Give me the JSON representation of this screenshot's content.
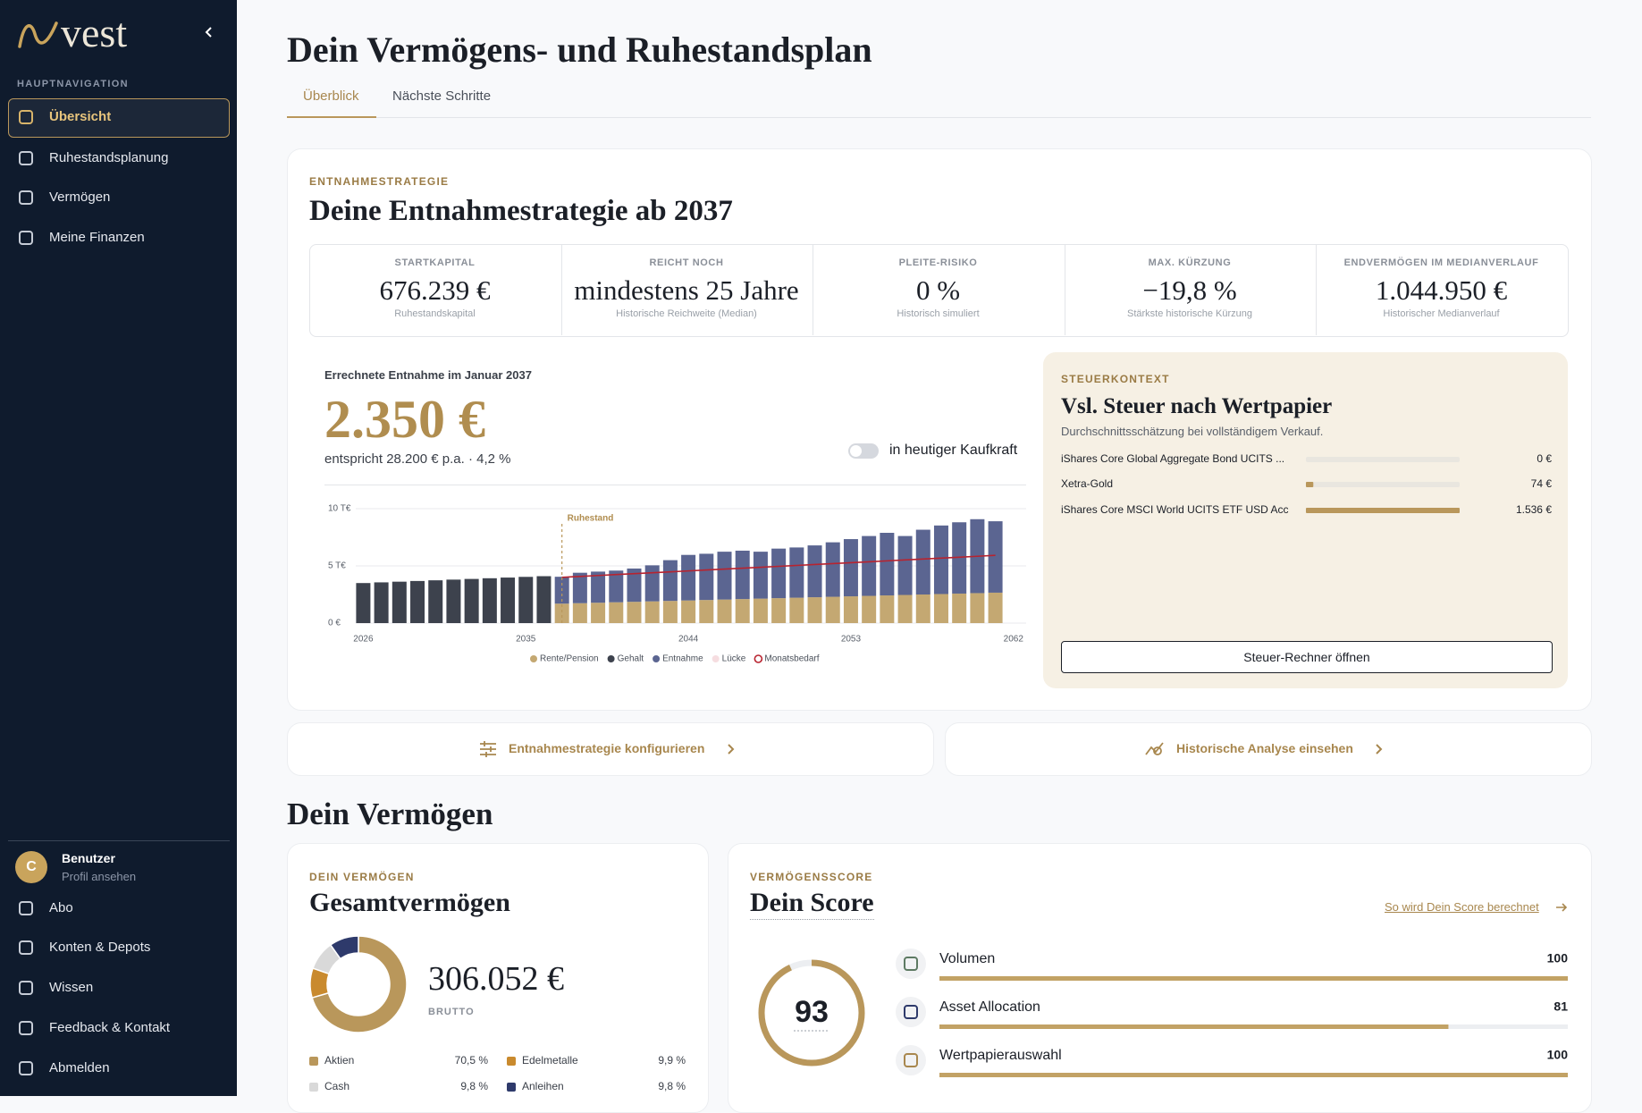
{
  "sidebar": {
    "logo": "vest",
    "section": "HAUPTNAVIGATION",
    "nav": [
      "Übersicht",
      "Ruhestandsplanung",
      "Vermögen",
      "Meine Finanzen"
    ],
    "user": {
      "initial": "C",
      "name": "Benutzer",
      "link": "Profil ansehen"
    },
    "bottom_nav": [
      "Abo",
      "Konten & Depots",
      "Wissen",
      "Feedback & Kontakt",
      "Abmelden"
    ]
  },
  "header": {
    "title": "Dein Vermögens- und Ruhestandsplan",
    "tabs": [
      "Überblick",
      "Nächste Schritte"
    ]
  },
  "strategy": {
    "eyebrow": "ENTNAHMESTRATEGIE",
    "title": "Deine Entnahmestrategie ab 2037",
    "kpis": [
      {
        "label": "STARTKAPITAL",
        "value": "676.239 €",
        "note": "Ruhestandskapital"
      },
      {
        "label": "REICHT NOCH",
        "value": "mindestens 25 Jahre",
        "note": "Historische Reichweite (Median)"
      },
      {
        "label": "PLEITE-RISIKO",
        "value": "0 %",
        "note": "Historisch simuliert"
      },
      {
        "label": "MAX. KÜRZUNG",
        "value": "−19,8 %",
        "note": "Stärkste historische Kürzung"
      },
      {
        "label": "ENDVERMÖGEN IM MEDIANVERLAUF",
        "value": "1.044.950 €",
        "note": "Historischer Medianverlauf"
      }
    ],
    "withdrawal": {
      "label": "Errechnete Entnahme im Januar 2037",
      "amount": "2.350 €",
      "detail": "entspricht 28.200 € p.a. · 4,2 %",
      "toggle": "in heutiger Kaufkraft"
    }
  },
  "tax": {
    "eyebrow": "STEUERKONTEXT",
    "title": "Vsl. Steuer nach Wertpapier",
    "subtitle": "Durchschnittsschätzung bei vollständigem Verkauf.",
    "button": "Steuer-Rechner öffnen"
  },
  "actions": [
    "Entnahmestrategie konfigurieren",
    "Historische Analyse einsehen"
  ],
  "wealth": {
    "section_title": "Dein Vermögen",
    "eyebrow": "DEIN VERMÖGEN",
    "title": "Gesamtvermögen",
    "total": "306.052 €",
    "total_label": "BRUTTO"
  },
  "score": {
    "eyebrow": "VERMÖGENSSCORE",
    "title": "Dein Score",
    "link": "So wird Dein Score berechnet"
  },
  "chart_data": [
    {
      "type": "bar",
      "stacked": true,
      "x": [
        2026,
        2027,
        2028,
        2029,
        2030,
        2031,
        2032,
        2033,
        2034,
        2035,
        2036,
        2037,
        2038,
        2039,
        2040,
        2041,
        2042,
        2043,
        2044,
        2045,
        2046,
        2047,
        2048,
        2049,
        2050,
        2051,
        2052,
        2053,
        2054,
        2055,
        2056,
        2057,
        2058,
        2059,
        2060,
        2061
      ],
      "xlim": [
        2024,
        2063
      ],
      "xticks": [
        2026,
        2035,
        2044,
        2053,
        2062
      ],
      "ylim": [
        0,
        10000
      ],
      "yticks": [
        {
          "value": 0,
          "label": "0 €"
        },
        {
          "value": 5000,
          "label": "5 T€"
        },
        {
          "value": 10000,
          "label": "10 T€"
        }
      ],
      "grid": true,
      "annotations": [
        {
          "x": 2037,
          "label": "Ruhestand"
        }
      ],
      "series": [
        {
          "name": "Rente/Pension",
          "color": "#c4a872",
          "values": [
            null,
            null,
            null,
            null,
            null,
            null,
            null,
            null,
            null,
            null,
            null,
            1700,
            1740,
            1780,
            1820,
            1860,
            1900,
            1940,
            1980,
            2020,
            2060,
            2100,
            2140,
            2180,
            2220,
            2260,
            2300,
            2340,
            2380,
            2420,
            2460,
            2500,
            2540,
            2580,
            2620,
            2660
          ]
        },
        {
          "name": "Gehalt",
          "color": "#3d424d",
          "values": [
            3500,
            3560,
            3620,
            3680,
            3740,
            3800,
            3860,
            3920,
            3980,
            4040,
            4100,
            null,
            null,
            null,
            null,
            null,
            null,
            null,
            null,
            null,
            null,
            null,
            null,
            null,
            null,
            null,
            null,
            null,
            null,
            null,
            null,
            null,
            null,
            null,
            null,
            null
          ]
        },
        {
          "name": "Entnahme",
          "color": "#5b6591",
          "values": [
            null,
            null,
            null,
            null,
            null,
            null,
            null,
            null,
            null,
            null,
            null,
            2350,
            2660,
            2720,
            2770,
            2910,
            3150,
            3560,
            3980,
            4040,
            4180,
            4230,
            4100,
            4330,
            4390,
            4530,
            4760,
            5000,
            5230,
            5470,
            5150,
            5660,
            5990,
            6230,
            6460,
            6240
          ]
        },
        {
          "name": "Lücke",
          "color": "#f6dde0",
          "values": [
            null,
            null,
            null,
            null,
            null,
            null,
            null,
            null,
            null,
            null,
            null,
            null,
            null,
            null,
            null,
            null,
            null,
            null,
            null,
            null,
            null,
            null,
            null,
            null,
            null,
            null,
            null,
            null,
            null,
            null,
            null,
            null,
            null,
            null,
            null,
            null
          ]
        },
        {
          "name": "Monatsbedarf",
          "color": "#b8232f",
          "type": "line",
          "values": [
            null,
            null,
            null,
            null,
            null,
            null,
            null,
            null,
            null,
            null,
            null,
            4000,
            4080,
            4160,
            4240,
            4320,
            4400,
            4480,
            4560,
            4640,
            4720,
            4800,
            4880,
            4960,
            5040,
            5120,
            5200,
            5280,
            5360,
            5440,
            5520,
            5600,
            5680,
            5760,
            5840,
            5920
          ]
        }
      ]
    },
    {
      "type": "bar",
      "orientation": "horizontal",
      "categories": [
        "iShares Core Global Aggregate Bond UCITS ...",
        "Xetra-Gold",
        "iShares Core MSCI World UCITS ETF USD Acc"
      ],
      "values": [
        0,
        74,
        1536
      ],
      "value_labels": [
        "0 €",
        "74 €",
        "1.536 €"
      ],
      "xlim": [
        0,
        1536
      ],
      "color": "#b9975b"
    },
    {
      "type": "donut",
      "categories": [
        "Aktien",
        "Edelmetalle",
        "Cash",
        "Anleihen"
      ],
      "values": [
        70.5,
        9.9,
        9.8,
        9.8
      ],
      "value_labels": [
        "70,5 %",
        "9,9 %",
        "9,8 %",
        "9,8 %"
      ],
      "colors": [
        "#b9975b",
        "#c98a2e",
        "#d9d9d9",
        "#2e3a6b"
      ]
    },
    {
      "type": "gauge",
      "value": 93,
      "ylim": [
        0,
        100
      ],
      "color": "#b9975b"
    },
    {
      "type": "bar",
      "orientation": "horizontal",
      "categories": [
        "Volumen",
        "Asset Allocation",
        "Wertpapierauswahl"
      ],
      "values": [
        100,
        81,
        100
      ],
      "xlim": [
        0,
        100
      ],
      "color": "#c2a265"
    }
  ]
}
